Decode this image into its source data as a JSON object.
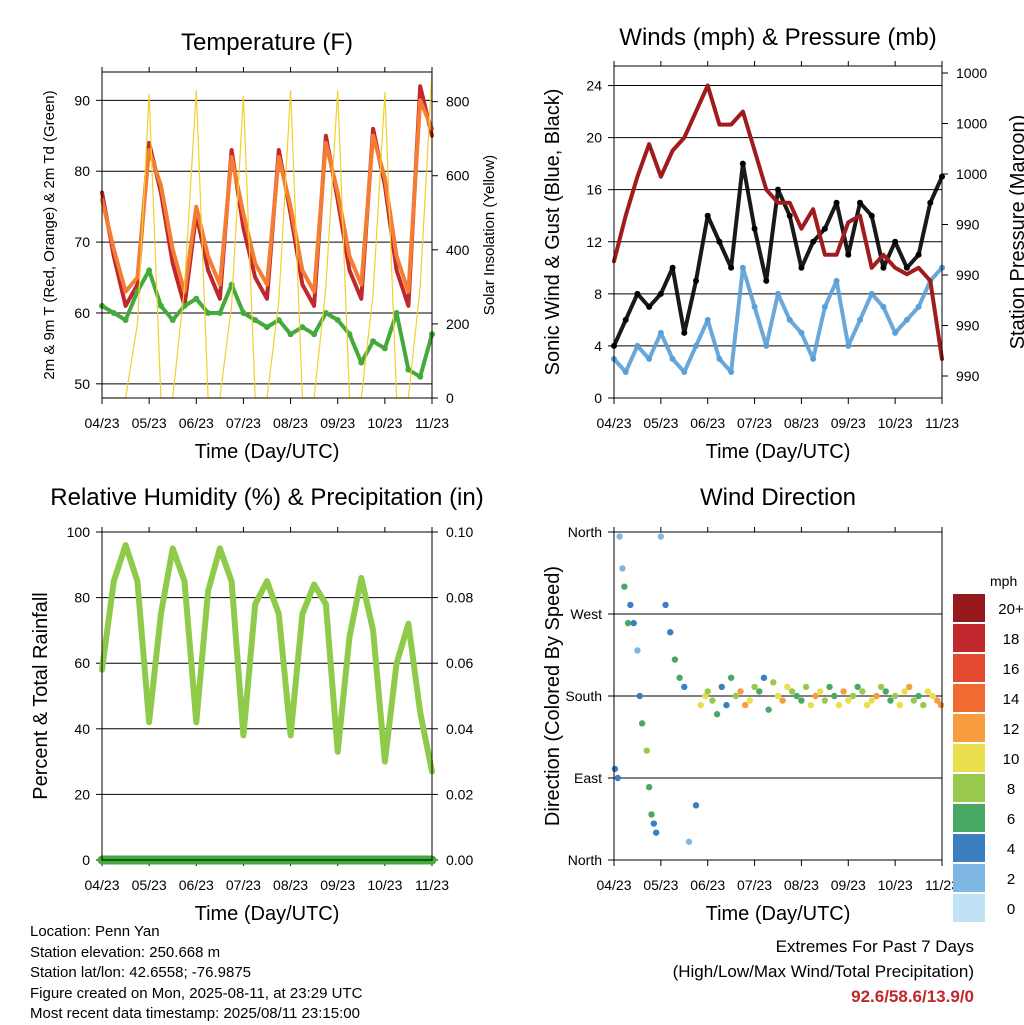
{
  "x_tick_labels": [
    "04/23",
    "05/23",
    "06/23",
    "07/23",
    "08/23",
    "09/23",
    "10/23",
    "11/23"
  ],
  "footer": {
    "location": "Location: Penn Yan",
    "elevation": "Station elevation: 250.668 m",
    "latlon": "Station lat/lon: 42.6558; -76.9875",
    "created": "Figure created on Mon, 2025-08-11, at 23:29 UTC",
    "recent": "Most recent data timestamp: 2025/08/11 23:15:00",
    "extremes_title": "Extremes For Past 7 Days",
    "extremes_sub": "(High/Low/Max Wind/Total Precipitation)",
    "extremes_value": "92.6/58.6/13.9/0"
  },
  "chart_data": [
    {
      "type": "line",
      "title": "Temperature (F)",
      "xlabel": "Time (Day/UTC)",
      "ylabel": "2m & 9m T (Red, Orange) & 2m Td (Green)",
      "ylabel_right": "Solar Insolation (Yellow)",
      "ylim": [
        48,
        94
      ],
      "yticks": [
        50,
        60,
        70,
        80,
        90
      ],
      "ylim_right": [
        0,
        880
      ],
      "yticks_right": [
        0,
        200,
        400,
        600,
        800
      ],
      "grid": true,
      "x": [
        0,
        0.25,
        0.5,
        0.75,
        1,
        1.25,
        1.5,
        1.75,
        2,
        2.25,
        2.5,
        2.75,
        3,
        3.25,
        3.5,
        3.75,
        4,
        4.25,
        4.5,
        4.75,
        5,
        5.25,
        5.5,
        5.75,
        6,
        6.25,
        6.5,
        6.75,
        7
      ],
      "series": [
        {
          "color": "#c0282d",
          "values": [
            77,
            68,
            61,
            64,
            84,
            77,
            67,
            61,
            74,
            66,
            62,
            83,
            72,
            65,
            62,
            83,
            74,
            64,
            61,
            85,
            76,
            66,
            62,
            86,
            78,
            66,
            61,
            92,
            85
          ]
        },
        {
          "color": "#f47d33",
          "values": [
            76,
            69,
            63,
            65,
            83,
            78,
            69,
            63,
            75,
            68,
            64,
            82,
            74,
            67,
            64,
            82,
            75,
            66,
            63,
            84,
            77,
            68,
            64,
            85,
            79,
            68,
            63,
            90,
            86
          ]
        },
        {
          "color": "#44aa3c",
          "values": [
            61,
            60,
            59,
            63,
            66,
            61,
            59,
            61,
            62,
            60,
            60,
            64,
            60,
            59,
            58,
            59,
            57,
            58,
            57,
            60,
            59,
            57,
            53,
            56,
            55,
            60,
            52,
            51,
            57
          ]
        },
        {
          "color": "#f2d02d",
          "values": [
            0,
            0,
            0,
            200,
            820,
            0,
            0,
            300,
            830,
            0,
            0,
            250,
            815,
            0,
            0,
            260,
            830,
            0,
            0,
            300,
            830,
            0,
            0,
            280,
            825,
            0,
            0,
            300,
            880
          ]
        }
      ]
    },
    {
      "type": "scatter",
      "title": "Winds (mph) & Pressure (mb)",
      "xlabel": "Time (Day/UTC)",
      "ylabel": "Sonic Wind & Gust (Blue, Black)",
      "ylabel_right": "Station Pressure (Maroon)",
      "ylim": [
        0,
        25.5
      ],
      "yticks": [
        0,
        4,
        8,
        12,
        16,
        20,
        24
      ],
      "yticks_right_labels": [
        "1000",
        "1000",
        "1000",
        "990",
        "990",
        "990",
        "990"
      ],
      "grid": true,
      "x": [
        0,
        0.25,
        0.5,
        0.75,
        1,
        1.25,
        1.5,
        1.75,
        2,
        2.25,
        2.5,
        2.75,
        3,
        3.25,
        3.5,
        3.75,
        4,
        4.25,
        4.5,
        4.75,
        5,
        5.25,
        5.5,
        5.75,
        6,
        6.25,
        6.5,
        6.75,
        7
      ],
      "series": [
        {
          "color": "#5a9fd6",
          "values": [
            3,
            2,
            4,
            3,
            5,
            3,
            2,
            4,
            6,
            3,
            2,
            10,
            7,
            4,
            8,
            6,
            5,
            3,
            7,
            9,
            4,
            6,
            8,
            7,
            5,
            6,
            7,
            9,
            10
          ]
        },
        {
          "color": "#000000",
          "values": [
            4,
            6,
            8,
            7,
            8,
            10,
            5,
            9,
            14,
            12,
            10,
            18,
            13,
            9,
            16,
            14,
            10,
            12,
            13,
            15,
            11,
            15,
            14,
            10,
            12,
            10,
            11,
            15,
            17
          ]
        },
        {
          "color": "#a01c1c",
          "values": [
            10.5,
            14,
            17,
            19.5,
            17,
            19,
            20,
            22,
            24,
            21,
            21,
            22,
            19,
            16,
            15,
            15,
            13,
            14.5,
            11,
            11,
            13.5,
            14,
            10,
            11,
            10,
            9.5,
            10,
            9,
            3
          ]
        }
      ]
    },
    {
      "type": "line",
      "title": "Relative Humidity (%) & Precipitation (in)",
      "xlabel": "Time (Day/UTC)",
      "ylabel": "Percent & Total Rainfall",
      "ylim": [
        0,
        100
      ],
      "yticks": [
        0,
        20,
        40,
        60,
        80,
        100
      ],
      "yticks_right_labels": [
        "0.00",
        "0.02",
        "0.04",
        "0.06",
        "0.08",
        "0.10"
      ],
      "grid": true,
      "x": [
        0,
        0.25,
        0.5,
        0.75,
        1,
        1.25,
        1.5,
        1.75,
        2,
        2.25,
        2.5,
        2.75,
        3,
        3.25,
        3.5,
        3.75,
        4,
        4.25,
        4.5,
        4.75,
        5,
        5.25,
        5.5,
        5.75,
        6,
        6.25,
        6.5,
        6.75,
        7
      ],
      "series": [
        {
          "color": "#8fcb4b",
          "values": [
            58,
            85,
            96,
            85,
            42,
            75,
            95,
            85,
            42,
            82,
            95,
            85,
            38,
            78,
            85,
            75,
            38,
            75,
            84,
            78,
            33,
            68,
            86,
            70,
            30,
            60,
            72,
            45,
            27
          ]
        },
        {
          "color": "#44aa3c",
          "values": [
            0,
            0,
            0,
            0,
            0,
            0,
            0,
            0,
            0,
            0,
            0,
            0,
            0,
            0,
            0,
            0,
            0,
            0,
            0,
            0,
            0,
            0,
            0,
            0,
            0,
            0,
            0,
            0,
            0
          ]
        }
      ]
    },
    {
      "type": "scatter",
      "title": "Wind Direction",
      "xlabel": "Time (Day/UTC)",
      "ylabel": "Direction (Colored By Speed)",
      "ylim": [
        0,
        360
      ],
      "ytick_labels": [
        "North",
        "East",
        "South",
        "West",
        "North"
      ],
      "grid": true,
      "colorbar_title": "mph",
      "colorbar_labels": [
        "20+",
        "18",
        "16",
        "14",
        "12",
        "10",
        "8",
        "6",
        "4",
        "2",
        "0"
      ],
      "colorbar_colors": [
        "#96191c",
        "#c0282d",
        "#e44a2f",
        "#f06a32",
        "#f89d3f",
        "#e9df4d",
        "#98c84d",
        "#4aa865",
        "#3b7fc0",
        "#7eb8e2",
        "#bfe3f5"
      ],
      "x": [
        0.02,
        0.08,
        0.12,
        0.18,
        0.22,
        0.3,
        0.35,
        0.42,
        0.5,
        0.55,
        0.6,
        0.7,
        0.75,
        0.8,
        0.85,
        0.9,
        1.0,
        1.1,
        1.2,
        1.3,
        1.4,
        1.5,
        1.6,
        1.75,
        1.85,
        1.95,
        2.0,
        2.1,
        2.2,
        2.3,
        2.4,
        2.5,
        2.6,
        2.7,
        2.8,
        2.9,
        3.0,
        3.1,
        3.2,
        3.3,
        3.4,
        3.5,
        3.6,
        3.7,
        3.8,
        3.9,
        4.0,
        4.1,
        4.2,
        4.3,
        4.4,
        4.5,
        4.6,
        4.7,
        4.8,
        4.9,
        5.0,
        5.1,
        5.2,
        5.3,
        5.4,
        5.5,
        5.6,
        5.7,
        5.8,
        5.9,
        6.0,
        6.1,
        6.2,
        6.3,
        6.4,
        6.5,
        6.6,
        6.7,
        6.8,
        6.9,
        6.98
      ],
      "y": [
        100,
        90,
        355,
        320,
        300,
        260,
        280,
        260,
        230,
        180,
        150,
        120,
        80,
        50,
        40,
        30,
        355,
        280,
        250,
        220,
        200,
        190,
        20,
        60,
        170,
        180,
        185,
        175,
        160,
        190,
        170,
        200,
        180,
        185,
        170,
        175,
        190,
        185,
        200,
        165,
        195,
        180,
        175,
        190,
        185,
        180,
        175,
        190,
        170,
        180,
        185,
        175,
        190,
        180,
        170,
        185,
        175,
        180,
        190,
        185,
        170,
        175,
        180,
        190,
        185,
        175,
        180,
        170,
        185,
        190,
        175,
        180,
        170,
        185,
        180,
        175,
        170
      ],
      "speed": [
        3,
        4,
        1,
        2,
        5,
        6,
        4,
        3,
        2,
        4,
        5,
        7,
        6,
        5,
        4,
        3,
        2,
        3,
        4,
        5,
        6,
        3,
        2,
        3,
        9,
        10,
        8,
        7,
        6,
        4,
        3,
        5,
        8,
        11,
        12,
        9,
        7,
        6,
        4,
        5,
        8,
        10,
        12,
        9,
        7,
        6,
        5,
        8,
        10,
        12,
        9,
        7,
        6,
        5,
        9,
        11,
        10,
        8,
        6,
        7,
        9,
        10,
        12,
        8,
        6,
        5,
        7,
        9,
        10,
        11,
        8,
        6,
        7,
        9,
        10,
        12,
        11
      ]
    }
  ]
}
